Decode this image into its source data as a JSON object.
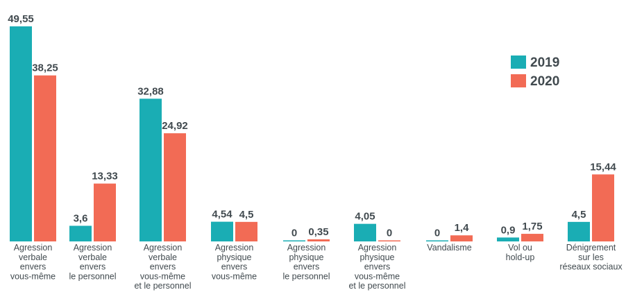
{
  "chart_data": {
    "type": "bar",
    "categories": [
      [
        "Agression",
        "verbale",
        "envers",
        "vous-même"
      ],
      [
        "Agression",
        "verbale",
        "envers",
        "le personnel"
      ],
      [
        "Agression",
        "verbale",
        "envers",
        "vous-même",
        "et le personnel"
      ],
      [
        "Agression",
        "physique",
        "envers",
        "vous-même"
      ],
      [
        "Agression",
        "physique",
        "envers",
        "le personnel"
      ],
      [
        "Agression",
        "physique",
        "envers",
        "vous-même",
        "et le personnel"
      ],
      [
        "Vandalisme"
      ],
      [
        "Vol ou",
        "hold-up"
      ],
      [
        "Dénigrement",
        "sur les",
        "réseaux sociaux"
      ]
    ],
    "series": [
      {
        "name": "2019",
        "color": "#1aadb4",
        "values": [
          49.55,
          3.6,
          32.88,
          4.54,
          0,
          4.05,
          0,
          0.9,
          4.5
        ],
        "labels": [
          "49,55",
          "3,6",
          "32,88",
          "4,54",
          "0",
          "4,05",
          "0",
          "0,9",
          "4,5"
        ]
      },
      {
        "name": "2020",
        "color": "#f26b55",
        "values": [
          38.25,
          13.33,
          24.92,
          4.5,
          0.35,
          0,
          1.4,
          1.75,
          15.44
        ],
        "labels": [
          "38,25",
          "13,33",
          "24,92",
          "4,5",
          "0,35",
          "0",
          "1,4",
          "1,75",
          "15,44"
        ]
      }
    ],
    "ylim": [
      0,
      49.55
    ],
    "grid": false,
    "legend_position": "top-right",
    "title": "",
    "xlabel": "",
    "ylabel": ""
  }
}
